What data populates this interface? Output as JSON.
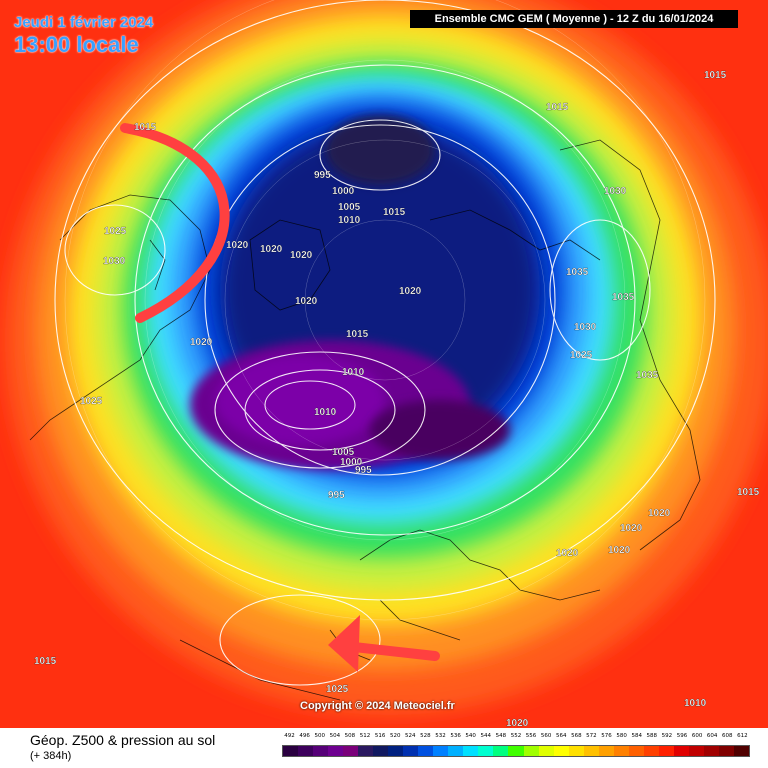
{
  "header": {
    "date": "Jeudi 1 février 2024",
    "time": "13:00 locale",
    "model_info": "Ensemble CMC GEM  ( Moyenne )  -  12 Z du 16/01/2024"
  },
  "footer": {
    "title": "Géop. Z500 & pression au sol",
    "lead": "(+ 384h)",
    "copyright": "Copyright © 2024 Meteociel.fr"
  },
  "legend": {
    "values": [
      "492",
      "496",
      "500",
      "504",
      "508",
      "512",
      "516",
      "520",
      "524",
      "528",
      "532",
      "536",
      "540",
      "544",
      "548",
      "552",
      "556",
      "560",
      "564",
      "568",
      "572",
      "576",
      "580",
      "584",
      "588",
      "592",
      "596",
      "600",
      "604",
      "608",
      "612"
    ],
    "colors": [
      "#2a0040",
      "#3d005c",
      "#560078",
      "#6e0090",
      "#7a007a",
      "#2a1860",
      "#101860",
      "#002080",
      "#0030b0",
      "#0050e0",
      "#0080ff",
      "#00b0ff",
      "#00e0ff",
      "#00ffd0",
      "#00ff80",
      "#40ff00",
      "#a0ff00",
      "#e0ff00",
      "#ffff00",
      "#ffe000",
      "#ffc000",
      "#ffa000",
      "#ff8000",
      "#ff6000",
      "#ff4000",
      "#ff2000",
      "#e00000",
      "#c00000",
      "#a00000",
      "#800000",
      "#500000"
    ]
  },
  "isobars": [
    {
      "value": "1015"
    },
    {
      "value": "1015"
    },
    {
      "value": "1015"
    },
    {
      "value": "995"
    },
    {
      "value": "1000"
    },
    {
      "value": "1005"
    },
    {
      "value": "1010"
    },
    {
      "value": "1015"
    },
    {
      "value": "1030"
    },
    {
      "value": "1025"
    },
    {
      "value": "1030"
    },
    {
      "value": "1020"
    },
    {
      "value": "1020"
    },
    {
      "value": "1020"
    },
    {
      "value": "1020"
    },
    {
      "value": "1035"
    },
    {
      "value": "1035"
    },
    {
      "value": "1030"
    },
    {
      "value": "1020"
    },
    {
      "value": "1015"
    },
    {
      "value": "1025"
    },
    {
      "value": "1020"
    },
    {
      "value": "1010"
    },
    {
      "value": "1035"
    },
    {
      "value": "1025"
    },
    {
      "value": "1010"
    },
    {
      "value": "1005"
    },
    {
      "value": "1000"
    },
    {
      "value": "995"
    },
    {
      "value": "995"
    },
    {
      "value": "1015"
    },
    {
      "value": "1020"
    },
    {
      "value": "1020"
    },
    {
      "value": "1020"
    },
    {
      "value": "1020"
    },
    {
      "value": "1015"
    },
    {
      "value": "1025"
    },
    {
      "value": "1010"
    },
    {
      "value": "1020"
    }
  ],
  "field_colors": {
    "dark_purple": "#5a0070",
    "purple": "#7c00a0",
    "deep_blue": "#0a1a80",
    "blue": "#0040d8",
    "light_blue": "#40b0ff",
    "cyan": "#40e0ff",
    "green": "#30e060",
    "yellow_green": "#c0f040",
    "yellow": "#ffe820",
    "orange": "#ffa020",
    "red_orange": "#ff6020",
    "red": "#ff3010",
    "annotation": "#ff4040"
  }
}
